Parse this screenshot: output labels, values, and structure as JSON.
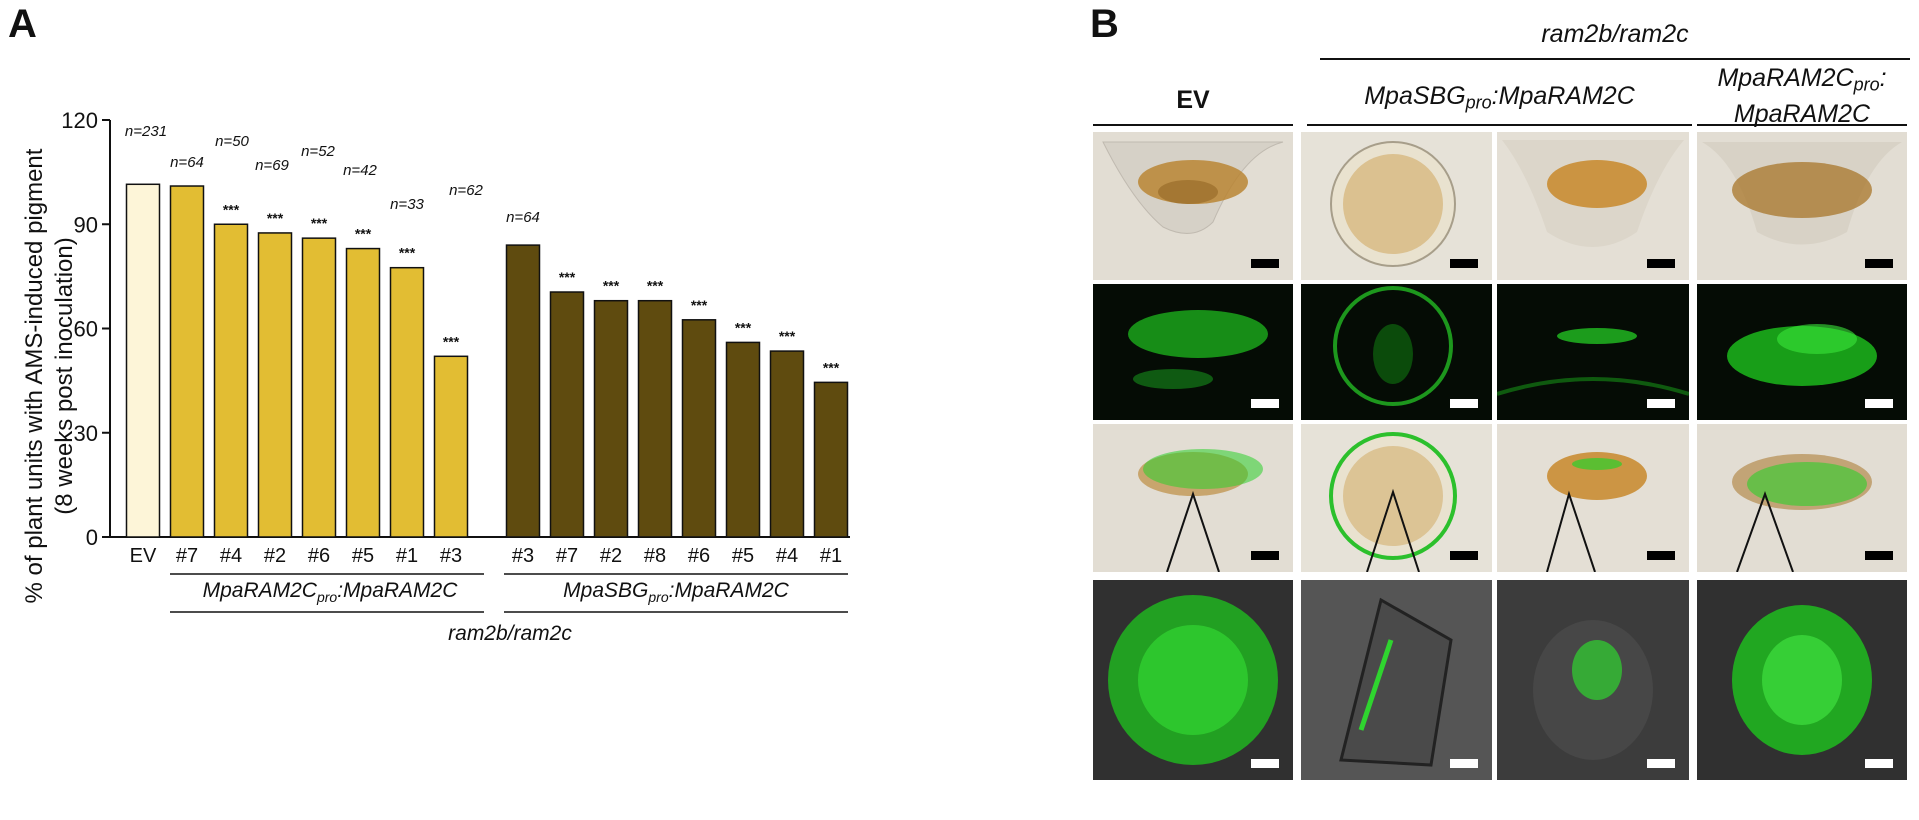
{
  "panel_a": {
    "letter": "A",
    "ylabel_line1": "% of plant units with AMS-induced pigment",
    "ylabel_line2": "(8 weeks post inoculation)",
    "group_label_1": {
      "gene": "MpaRAM2C",
      "sub": "pro",
      "target": ":MpaRAM2C"
    },
    "group_label_2": {
      "gene": "MpaSBG",
      "sub": "pro",
      "target": ":MpaRAM2C"
    },
    "group_label_bottom": "ram2b/ram2c"
  },
  "chart_data": {
    "type": "bar",
    "ylim": [
      0,
      120
    ],
    "yticks": [
      0,
      30,
      60,
      90,
      120
    ],
    "ylabel": "% of plant units with AMS-induced pigment (8 weeks post inoculation)",
    "categories": [
      "EV",
      "#7",
      "#4",
      "#2",
      "#6",
      "#5",
      "#1",
      "#3",
      "#3",
      "#7",
      "#2",
      "#8",
      "#6",
      "#5",
      "#4",
      "#1"
    ],
    "values": [
      101.5,
      101,
      90,
      87.5,
      86,
      83,
      77.5,
      52,
      84,
      70.5,
      68,
      68,
      62.5,
      56,
      53.5,
      44.5
    ],
    "groups": [
      "EV",
      "MpaRAM2Cpro:MpaRAM2C",
      "MpaRAM2Cpro:MpaRAM2C",
      "MpaRAM2Cpro:MpaRAM2C",
      "MpaRAM2Cpro:MpaRAM2C",
      "MpaRAM2Cpro:MpaRAM2C",
      "MpaRAM2Cpro:MpaRAM2C",
      "MpaRAM2Cpro:MpaRAM2C",
      "MpaSBGpro:MpaRAM2C",
      "MpaSBGpro:MpaRAM2C",
      "MpaSBGpro:MpaRAM2C",
      "MpaSBGpro:MpaRAM2C",
      "MpaSBGpro:MpaRAM2C",
      "MpaSBGpro:MpaRAM2C",
      "MpaSBGpro:MpaRAM2C",
      "MpaSBGpro:MpaRAM2C"
    ],
    "n_labels": [
      "n=231",
      "n=64",
      "n=50",
      "n=69",
      "n=52",
      "n=42",
      "n=33",
      "n=62",
      "n=64",
      "",
      "",
      "",
      "",
      "",
      "",
      ""
    ],
    "significance": [
      "",
      "",
      "***",
      "***",
      "***",
      "***",
      "***",
      "***",
      "",
      "***",
      "***",
      "***",
      "***",
      "***",
      "***",
      "***"
    ],
    "colors": {
      "EV": "#fdf5d8",
      "MpaRAM2Cpro:MpaRAM2C": "#e2bd33",
      "MpaSBGpro:MpaRAM2C": "#5f4b0f"
    },
    "grid": false,
    "legend": "none"
  },
  "panel_b": {
    "letter": "B",
    "top_label": "ram2b/ram2c",
    "col_headers": {
      "ev": "EV",
      "sbg": {
        "gene": "MpaSBG",
        "sub": "pro",
        "target": ":MpaRAM2C"
      },
      "ram2c": {
        "line1_gene": "MpaRAM2C",
        "line1_sub": "pro",
        "line1_suffix": ":",
        "line2": "MpaRAM2C"
      }
    },
    "rows": [
      "brightfield",
      "gfp",
      "merge",
      "zoom"
    ],
    "columns": [
      "EV",
      "MpaSBGpro:MpaRAM2C (1)",
      "MpaSBGpro:MpaRAM2C (2)",
      "MpaRAM2Cpro:MpaRAM2C"
    ],
    "colors": {
      "gfp": "#26d426",
      "brown_pigment": "#b07a22",
      "tissue": "#dcd7cc",
      "dark_bg": "#050c05",
      "zoom_bg": "#3a3a3a"
    }
  }
}
